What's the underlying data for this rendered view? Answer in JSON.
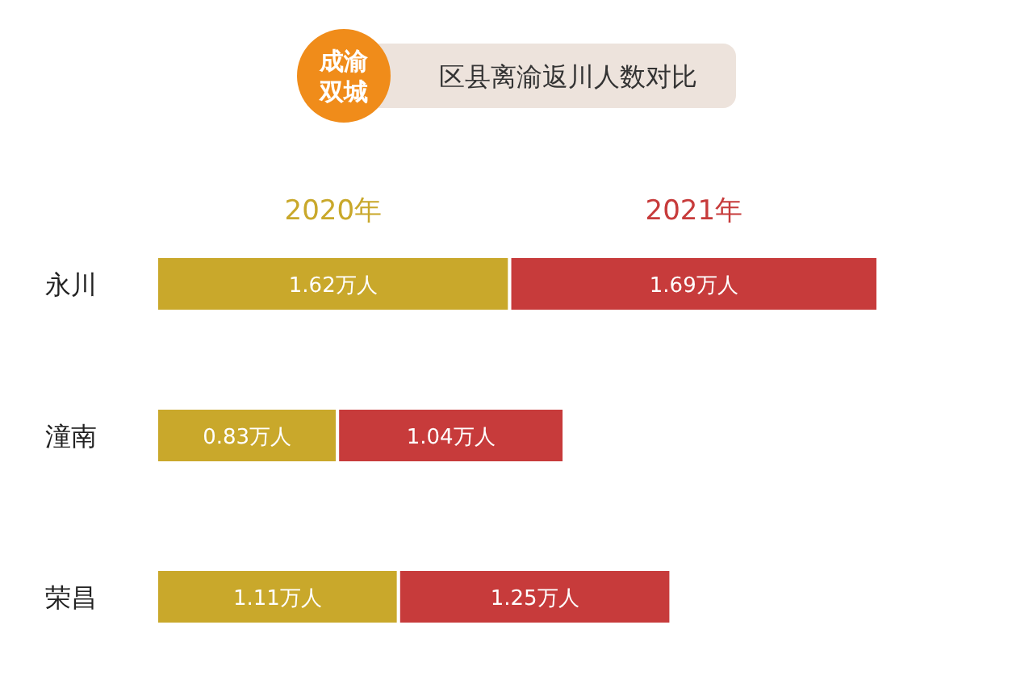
{
  "chart_data": {
    "type": "bar",
    "orientation": "horizontal",
    "stacked": true,
    "title": "成渝双城",
    "subtitle": "区县离渝返川人数对比",
    "legend": "top",
    "categories": [
      "永川",
      "潼南",
      "荣昌"
    ],
    "series": [
      {
        "name": "2020年",
        "color": "#c9a82b",
        "values": [
          1.62,
          0.83,
          1.11
        ],
        "value_labels": [
          "1.62万人",
          "0.83万人",
          "1.11万人"
        ]
      },
      {
        "name": "2021年",
        "color": "#c73b3b",
        "values": [
          1.69,
          1.04,
          1.25
        ],
        "value_labels": [
          "1.69万人",
          "1.04万人",
          "1.25万人"
        ]
      }
    ]
  }
}
